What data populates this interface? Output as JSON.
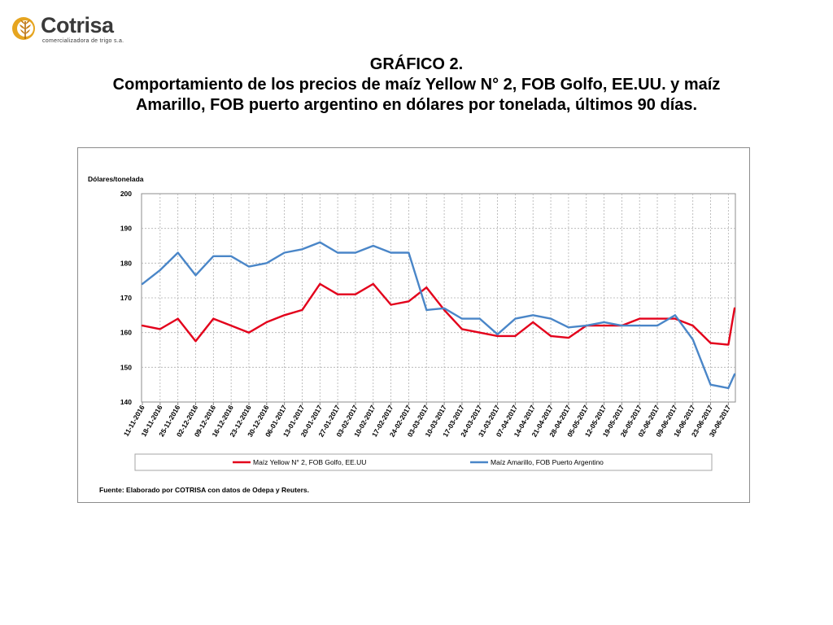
{
  "logo": {
    "name": "Cotrisa",
    "tagline": "comercializadora de trigo s.a."
  },
  "title": {
    "line1": "GRÁFICO 2.",
    "line2": "Comportamiento de los precios de maíz Yellow N° 2, FOB Golfo, EE.UU. y maíz",
    "line3": "Amarillo, FOB puerto argentino en dólares por tonelada, últimos 90 días."
  },
  "chart_data": {
    "type": "line",
    "ylabel": "Dólares/tonelada",
    "ylim": [
      140,
      200
    ],
    "yticks": [
      140,
      150,
      160,
      170,
      180,
      190,
      200
    ],
    "grid": true,
    "legend_position": "bottom",
    "source": "Fuente: Elaborado por COTRISA con datos de Odepa y Reuters.",
    "x_tick_labels": [
      "11-11-2016",
      "18-11-2016",
      "25-11-2016",
      "02-12-2016",
      "09-12-2016",
      "16-12-2016",
      "23-12-2016",
      "30-12-2016",
      "06-01-2017",
      "13-01-2017",
      "20-01-2017",
      "27-01-2017",
      "03-02-2017",
      "10-02-2017",
      "17-02-2017",
      "24-02-2017",
      "03-03-2017",
      "10-03-2017",
      "17-03-2017",
      "24-03-2017",
      "31-03-2017",
      "07-04-2017",
      "14-04-2017",
      "21-04-2017",
      "28-04-2017",
      "05-05-2017",
      "12-05-2017",
      "19-05-2017",
      "26-05-2017",
      "02-06-2017",
      "09-06-2017",
      "16-06-2017",
      "23-06-2017",
      "30-06-2017"
    ],
    "x": [
      0,
      1,
      2,
      3,
      4,
      5,
      6,
      7,
      8,
      9,
      10,
      11,
      12,
      13,
      14,
      15,
      16,
      17,
      18,
      19,
      20,
      21,
      22,
      23,
      24,
      25,
      26,
      27,
      28,
      29,
      30,
      31,
      32,
      33,
      33.35
    ],
    "series": [
      {
        "name": "Maíz Yellow N° 2, FOB Golfo, EE.UU",
        "color": "#e3001b",
        "values": [
          162,
          161,
          164,
          157.5,
          164,
          162,
          160,
          163,
          165,
          166.5,
          174,
          171,
          171,
          174,
          168,
          169,
          173,
          166.5,
          161,
          160,
          159,
          159,
          163,
          159,
          158.5,
          162,
          162,
          162,
          164,
          164,
          164,
          162,
          157,
          156.5,
          167
        ]
      },
      {
        "name": "Maíz Amarillo, FOB Puerto Argentino",
        "color": "#4a86c8",
        "values": [
          174,
          178,
          183,
          176.5,
          182,
          182,
          179,
          180,
          183,
          184,
          186,
          183,
          183,
          185,
          183,
          183,
          166.5,
          167,
          164,
          164,
          159.5,
          164,
          165,
          164,
          161.5,
          162,
          163,
          162,
          162,
          162,
          165,
          158,
          145,
          144,
          148
        ]
      }
    ]
  }
}
